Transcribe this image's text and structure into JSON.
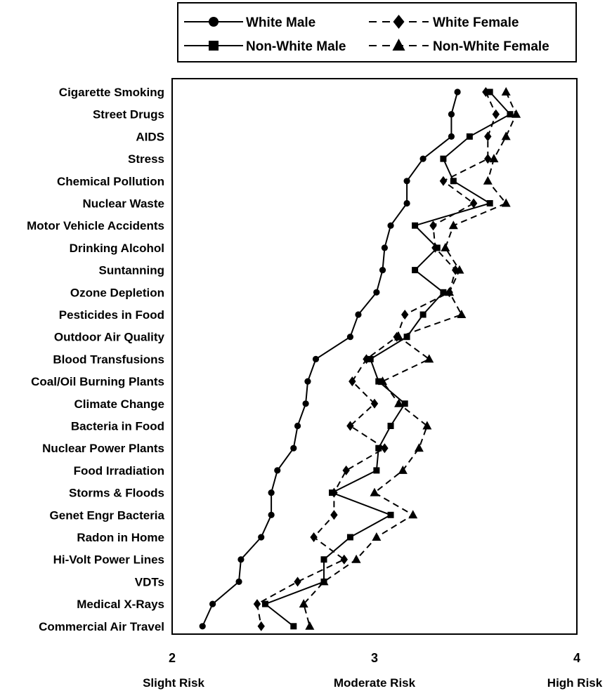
{
  "chart_data": {
    "type": "line",
    "orientation": "horizontal",
    "categories": [
      "Cigarette Smoking",
      "Street Drugs",
      "AIDS",
      "Stress",
      "Chemical Pollution",
      "Nuclear Waste",
      "Motor Vehicle Accidents",
      "Drinking Alcohol",
      "Suntanning",
      "Ozone Depletion",
      "Pesticides in Food",
      "Outdoor Air Quality",
      "Blood Transfusions",
      "Coal/Oil Burning Plants",
      "Climate Change",
      "Bacteria in Food",
      "Nuclear Power Plants",
      "Food Irradiation",
      "Storms & Floods",
      "Genet Engr Bacteria",
      "Radon in Home",
      "Hi-Volt Power Lines",
      "VDTs",
      "Medical X-Rays",
      "Commercial Air Travel"
    ],
    "series": [
      {
        "name": "White Male",
        "marker": "circle",
        "dash": "solid",
        "values": [
          3.41,
          3.38,
          3.38,
          3.24,
          3.16,
          3.16,
          3.08,
          3.05,
          3.04,
          3.01,
          2.92,
          2.88,
          2.71,
          2.67,
          2.66,
          2.62,
          2.6,
          2.52,
          2.49,
          2.49,
          2.44,
          2.34,
          2.33,
          2.2,
          2.15
        ]
      },
      {
        "name": "White Female",
        "marker": "diamond",
        "dash": "dashed",
        "values": [
          3.55,
          3.6,
          3.56,
          3.56,
          3.34,
          3.49,
          3.29,
          3.3,
          3.4,
          3.37,
          3.15,
          3.11,
          2.96,
          2.89,
          3.0,
          2.88,
          3.05,
          2.86,
          2.8,
          2.8,
          2.7,
          2.85,
          2.62,
          2.42,
          2.44
        ]
      },
      {
        "name": "Non-White Male",
        "marker": "square",
        "dash": "solid",
        "values": [
          3.57,
          3.67,
          3.47,
          3.34,
          3.39,
          3.57,
          3.2,
          3.31,
          3.2,
          3.34,
          3.24,
          3.16,
          2.98,
          3.02,
          3.15,
          3.08,
          3.02,
          3.01,
          2.79,
          3.08,
          2.88,
          2.75,
          2.75,
          2.46,
          2.6
        ]
      },
      {
        "name": "Non-White Female",
        "marker": "triangle",
        "dash": "dashed",
        "values": [
          3.65,
          3.7,
          3.65,
          3.59,
          3.56,
          3.65,
          3.39,
          3.35,
          3.42,
          3.37,
          3.43,
          3.12,
          3.27,
          3.04,
          3.12,
          3.26,
          3.22,
          3.14,
          3.0,
          3.19,
          3.01,
          2.91,
          2.75,
          2.65,
          2.68
        ]
      }
    ],
    "xlim": [
      2,
      4
    ],
    "xticks": [
      "2",
      "3",
      "4"
    ],
    "xtick_descriptions": [
      "Slight Risk",
      "Moderate Risk",
      "High Risk"
    ],
    "legend": {
      "position": "top",
      "columns": 2
    },
    "grid": false
  }
}
